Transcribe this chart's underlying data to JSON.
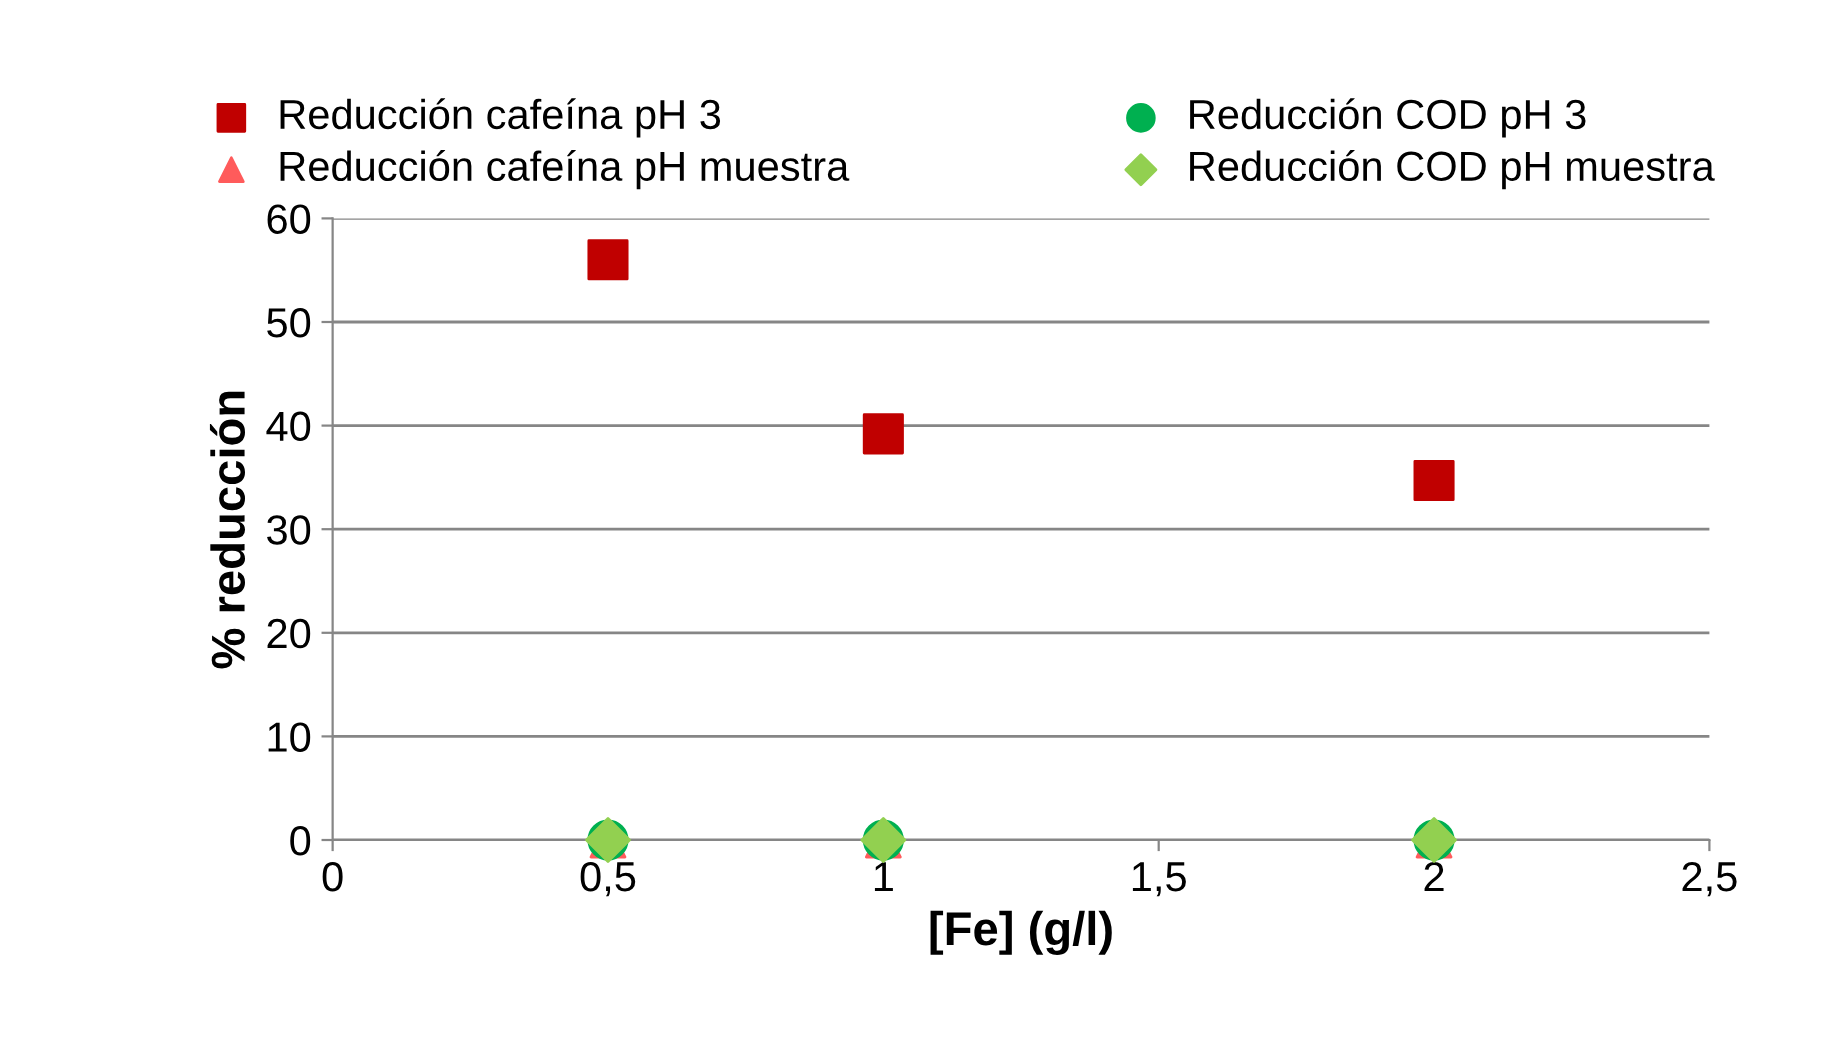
{
  "chart_data": {
    "type": "scatter",
    "xlabel": "[Fe] (g/l)",
    "ylabel": "% reducción",
    "xlim": [
      0,
      2.5
    ],
    "xticks": [
      0,
      {
        "value": 0.5,
        "label": "0,5"
      },
      1,
      {
        "value": 1.5,
        "label": "1,5"
      },
      2,
      {
        "value": 2.5,
        "label": "2,5"
      }
    ],
    "ylim": [
      0,
      60
    ],
    "yticks": [
      0,
      10,
      20,
      30,
      40,
      50,
      60
    ],
    "grid": "y",
    "legend": "top",
    "series": [
      {
        "name": "Reducción cafeína pH 3",
        "color": "#c00000",
        "marker": "square",
        "x": [
          0.5,
          1,
          2
        ],
        "values": [
          56,
          39.2,
          34.7
        ]
      },
      {
        "name": "Reducción cafeína pH muestra",
        "color": "#ff5b5b",
        "marker": "triangle",
        "x": [
          0.5,
          1,
          2
        ],
        "values": [
          0,
          0,
          0
        ]
      },
      {
        "name": "Reducción COD pH 3",
        "color": "#00b050",
        "marker": "circle",
        "x": [
          0.5,
          1,
          2
        ],
        "values": [
          0,
          0,
          0
        ]
      },
      {
        "name": "Reducción COD pH muestra",
        "color": "#92d050",
        "marker": "diamond",
        "x": [
          0.5,
          1,
          2
        ],
        "values": [
          0,
          0,
          0
        ]
      }
    ]
  }
}
